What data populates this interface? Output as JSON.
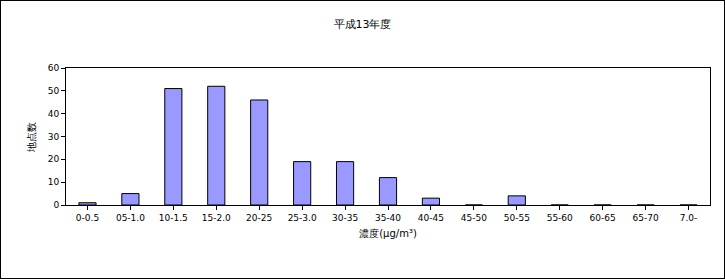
{
  "chart_data": {
    "type": "bar",
    "title": "平成13年度",
    "x_label": "濃度(μg/m³)",
    "y_label": "地点数",
    "categories": [
      "0-0.5",
      "05-1.0",
      "10-1.5",
      "15-2.0",
      "20-25",
      "25-3.0",
      "30-35",
      "35-40",
      "40-45",
      "45-50",
      "50-55",
      "55-60",
      "60-65",
      "65-70",
      "7.0-"
    ],
    "values": [
      1,
      5,
      51,
      52,
      46,
      19,
      19,
      12,
      3,
      0,
      4,
      0,
      0,
      0,
      0
    ],
    "color": "#9999ff",
    "ylim": [
      0,
      60
    ],
    "yticks": [
      0,
      10,
      20,
      30,
      40,
      50,
      60
    ],
    "grid": false
  }
}
